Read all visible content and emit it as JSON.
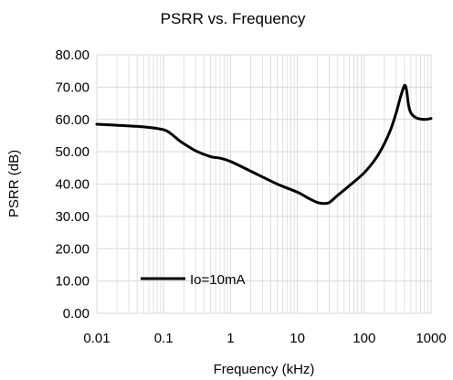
{
  "chart_data": {
    "type": "line",
    "title": "PSRR vs. Frequency",
    "xlabel": "Frequency (kHz)",
    "ylabel": "PSRR (dB)",
    "x_scale": "log",
    "xlim": [
      0.01,
      1000
    ],
    "ylim": [
      0,
      80
    ],
    "x_ticks": [
      0.01,
      0.1,
      1,
      10,
      100,
      1000
    ],
    "x_tick_labels": [
      "0.01",
      "0.1",
      "1",
      "10",
      "100",
      "1000"
    ],
    "y_ticks": [
      0,
      10,
      20,
      30,
      40,
      50,
      60,
      70,
      80
    ],
    "y_tick_labels": [
      "0.00",
      "10.00",
      "20.00",
      "30.00",
      "40.00",
      "50.00",
      "60.00",
      "70.00",
      "80.00"
    ],
    "grid": {
      "major": true,
      "minor_x": true
    },
    "legend_position": "bottom-left",
    "line_color": "#000000",
    "grid_color": "#d9d9d9",
    "series": [
      {
        "name": "Io=10mA",
        "x": [
          0.01,
          0.02,
          0.05,
          0.1,
          0.13,
          0.17,
          0.2,
          0.3,
          0.5,
          0.7,
          1,
          2,
          5,
          10,
          15,
          20,
          25,
          30,
          40,
          60,
          100,
          150,
          200,
          250,
          300,
          350,
          400,
          430,
          460,
          500,
          600,
          800,
          1000
        ],
        "y": [
          58.5,
          58.2,
          57.7,
          56.8,
          55.5,
          53.5,
          52.5,
          50.3,
          48.5,
          48.0,
          47.0,
          44.0,
          40.0,
          37.5,
          35.5,
          34.3,
          34.0,
          34.3,
          36.5,
          39.5,
          43.5,
          48.0,
          52.5,
          57.0,
          62.0,
          67.0,
          70.5,
          69.0,
          64.5,
          62.0,
          60.5,
          60.0,
          60.3
        ]
      }
    ]
  }
}
